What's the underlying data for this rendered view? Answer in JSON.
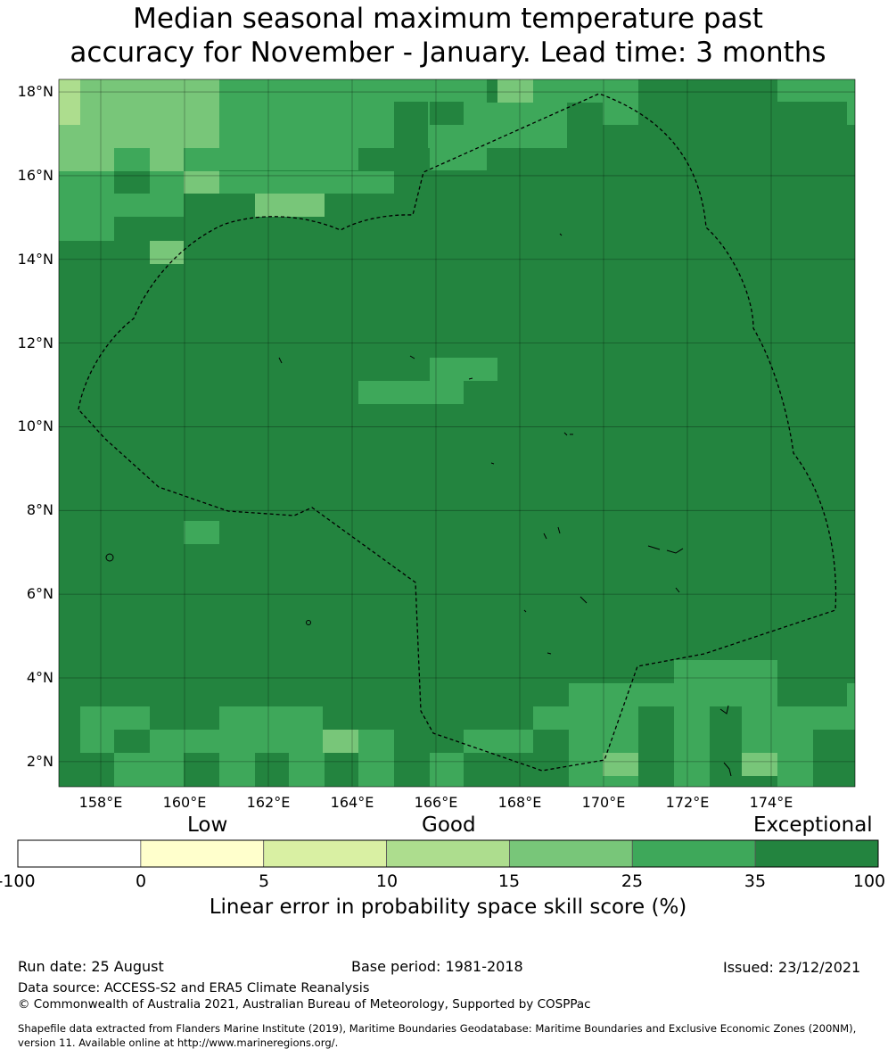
{
  "title": {
    "line1": "Median seasonal maximum temperature past",
    "line2": "accuracy for November - January. Lead time: 3 months"
  },
  "map": {
    "lat_labels": [
      "18°N",
      "16°N",
      "14°N",
      "12°N",
      "10°N",
      "8°N",
      "6°N",
      "4°N",
      "2°N"
    ],
    "lat_values": [
      18,
      16,
      14,
      12,
      10,
      8,
      6,
      4,
      2
    ],
    "lon_labels": [
      "158°E",
      "160°E",
      "162°E",
      "164°E",
      "166°E",
      "168°E",
      "170°E",
      "172°E",
      "174°E"
    ],
    "lon_values": [
      158,
      160,
      162,
      164,
      166,
      168,
      170,
      172,
      174
    ],
    "extent": {
      "lon_min": 157,
      "lon_max": 176,
      "lat_min": 1.4,
      "lat_max": 18.3
    },
    "grid_lines": true,
    "boundary_style": "dashed",
    "colors": {
      "exceptional": "#23843f",
      "cat25_35": "#3ea85a",
      "cat15_25": "#78c679",
      "cat10_15": "#addd8e",
      "cat5_10": "#d9f0a3",
      "cat0_5": "#ffffcc"
    }
  },
  "colorbar": {
    "category_words": [
      "Low",
      "Good",
      "Exceptional"
    ],
    "ticks": [
      "-100",
      "0",
      "5",
      "10",
      "15",
      "25",
      "35",
      "100"
    ],
    "colors": [
      "#ffffff",
      "#ffffcc",
      "#d9f0a3",
      "#addd8e",
      "#78c679",
      "#3ea85a",
      "#23843f"
    ],
    "label": "Linear error in probability space skill score (%)"
  },
  "footer": {
    "run_date": "Run date: 25 August",
    "base_period": "Base period: 1981-2018",
    "issued": "Issued: 23/12/2021",
    "data_source": "Data source: ACCESS-S2 and ERA5 Climate Reanalysis",
    "copyright": "© Commonwealth of Australia 2021, Australian Bureau of Meteorology, Supported by COSPPac",
    "shapefile_line1": "Shapefile data extracted from Flanders Marine Institute (2019), Maritime Boundaries Geodatabase: Maritime Boundaries and Exclusive Economic Zones (200NM),",
    "shapefile_line2": "version 11. Available online at http://www.marineregions.org/."
  }
}
